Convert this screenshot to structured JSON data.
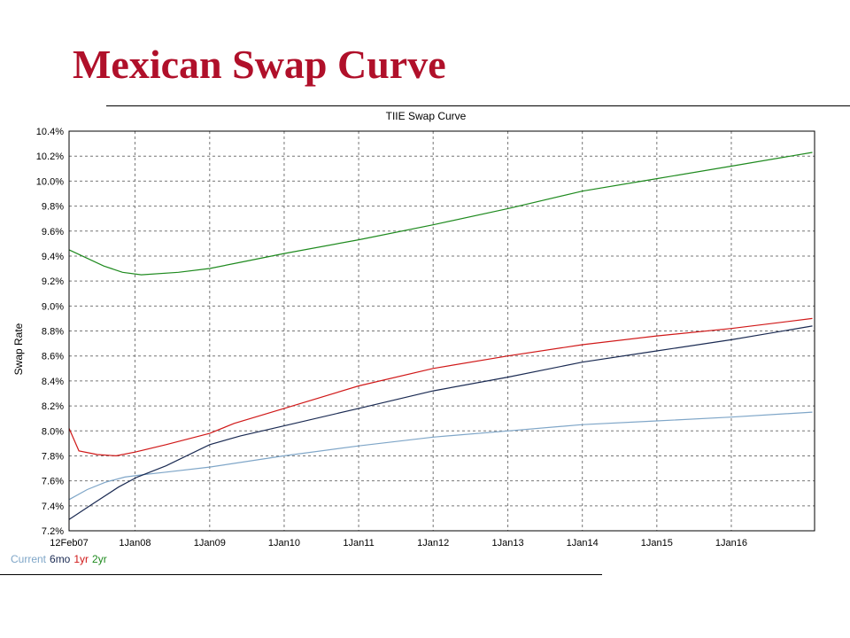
{
  "slide": {
    "title": "Mexican Swap Curve"
  },
  "chart_data": {
    "type": "line",
    "title": "TIIE Swap Curve",
    "xlabel": "",
    "ylabel": "Swap Rate",
    "x_type": "date",
    "xlim": [
      "2007-02-12",
      "2017-02-12"
    ],
    "ylim": [
      7.2,
      10.4
    ],
    "y_ticks": [
      {
        "value": 7.2,
        "label": "7.2%"
      },
      {
        "value": 7.4,
        "label": "7.4%"
      },
      {
        "value": 7.6,
        "label": "7.6%"
      },
      {
        "value": 7.8,
        "label": "7.8%"
      },
      {
        "value": 8.0,
        "label": "8.0%"
      },
      {
        "value": 8.2,
        "label": "8.2%"
      },
      {
        "value": 8.4,
        "label": "8.4%"
      },
      {
        "value": 8.6,
        "label": "8.6%"
      },
      {
        "value": 8.8,
        "label": "8.8%"
      },
      {
        "value": 9.0,
        "label": "9.0%"
      },
      {
        "value": 9.2,
        "label": "9.2%"
      },
      {
        "value": 9.4,
        "label": "9.4%"
      },
      {
        "value": 9.6,
        "label": "9.6%"
      },
      {
        "value": 9.8,
        "label": "9.8%"
      },
      {
        "value": 10.0,
        "label": "10.0%"
      },
      {
        "value": 10.2,
        "label": "10.2%"
      },
      {
        "value": 10.4,
        "label": "10.4%"
      }
    ],
    "x_ticks": [
      {
        "date": "2007-02-12",
        "label": "12Feb07"
      },
      {
        "date": "2008-01-01",
        "label": "1Jan08"
      },
      {
        "date": "2009-01-01",
        "label": "1Jan09"
      },
      {
        "date": "2010-01-01",
        "label": "1Jan10"
      },
      {
        "date": "2011-01-01",
        "label": "1Jan11"
      },
      {
        "date": "2012-01-01",
        "label": "1Jan12"
      },
      {
        "date": "2013-01-01",
        "label": "1Jan13"
      },
      {
        "date": "2014-01-01",
        "label": "1Jan14"
      },
      {
        "date": "2015-01-01",
        "label": "1Jan15"
      },
      {
        "date": "2016-01-01",
        "label": "1Jan16"
      }
    ],
    "grid": true,
    "legend_position": "bottom-left",
    "series": [
      {
        "name": "Current",
        "color": "#7fa6c8",
        "points": [
          {
            "x": "2007-02-12",
            "y": 7.45
          },
          {
            "x": "2007-05-12",
            "y": 7.53
          },
          {
            "x": "2007-08-12",
            "y": 7.59
          },
          {
            "x": "2007-11-12",
            "y": 7.63
          },
          {
            "x": "2008-02-12",
            "y": 7.65
          },
          {
            "x": "2008-06-01",
            "y": 7.67
          },
          {
            "x": "2009-01-01",
            "y": 7.71
          },
          {
            "x": "2010-01-01",
            "y": 7.8
          },
          {
            "x": "2011-01-01",
            "y": 7.88
          },
          {
            "x": "2012-01-01",
            "y": 7.95
          },
          {
            "x": "2013-01-01",
            "y": 8.0
          },
          {
            "x": "2014-01-01",
            "y": 8.05
          },
          {
            "x": "2015-01-01",
            "y": 8.08
          },
          {
            "x": "2016-01-01",
            "y": 8.11
          },
          {
            "x": "2017-02-01",
            "y": 8.15
          }
        ]
      },
      {
        "name": "6mo",
        "color": "#1a2a52",
        "points": [
          {
            "x": "2007-02-12",
            "y": 7.29
          },
          {
            "x": "2007-06-12",
            "y": 7.42
          },
          {
            "x": "2007-10-12",
            "y": 7.55
          },
          {
            "x": "2008-01-12",
            "y": 7.63
          },
          {
            "x": "2008-06-01",
            "y": 7.72
          },
          {
            "x": "2009-01-01",
            "y": 7.89
          },
          {
            "x": "2009-06-01",
            "y": 7.96
          },
          {
            "x": "2010-01-01",
            "y": 8.04
          },
          {
            "x": "2011-01-01",
            "y": 8.18
          },
          {
            "x": "2012-01-01",
            "y": 8.32
          },
          {
            "x": "2013-01-01",
            "y": 8.43
          },
          {
            "x": "2014-01-01",
            "y": 8.55
          },
          {
            "x": "2015-01-01",
            "y": 8.64
          },
          {
            "x": "2016-01-01",
            "y": 8.73
          },
          {
            "x": "2017-02-01",
            "y": 8.84
          }
        ]
      },
      {
        "name": "1yr",
        "color": "#d01818",
        "points": [
          {
            "x": "2007-02-12",
            "y": 8.02
          },
          {
            "x": "2007-04-01",
            "y": 7.84
          },
          {
            "x": "2007-07-01",
            "y": 7.81
          },
          {
            "x": "2007-10-01",
            "y": 7.8
          },
          {
            "x": "2008-01-01",
            "y": 7.83
          },
          {
            "x": "2008-06-01",
            "y": 7.89
          },
          {
            "x": "2009-01-01",
            "y": 7.98
          },
          {
            "x": "2009-05-01",
            "y": 8.06
          },
          {
            "x": "2010-01-01",
            "y": 8.18
          },
          {
            "x": "2011-01-01",
            "y": 8.36
          },
          {
            "x": "2012-01-01",
            "y": 8.5
          },
          {
            "x": "2013-01-01",
            "y": 8.6
          },
          {
            "x": "2014-01-01",
            "y": 8.69
          },
          {
            "x": "2015-01-01",
            "y": 8.76
          },
          {
            "x": "2016-01-01",
            "y": 8.82
          },
          {
            "x": "2017-02-01",
            "y": 8.9
          }
        ]
      },
      {
        "name": "2yr",
        "color": "#1e8a1e",
        "points": [
          {
            "x": "2007-02-12",
            "y": 9.45
          },
          {
            "x": "2007-05-01",
            "y": 9.39
          },
          {
            "x": "2007-08-01",
            "y": 9.32
          },
          {
            "x": "2007-11-01",
            "y": 9.27
          },
          {
            "x": "2008-02-01",
            "y": 9.25
          },
          {
            "x": "2008-08-01",
            "y": 9.27
          },
          {
            "x": "2009-01-01",
            "y": 9.3
          },
          {
            "x": "2009-06-01",
            "y": 9.35
          },
          {
            "x": "2010-01-01",
            "y": 9.42
          },
          {
            "x": "2011-01-01",
            "y": 9.53
          },
          {
            "x": "2012-01-01",
            "y": 9.65
          },
          {
            "x": "2013-01-01",
            "y": 9.78
          },
          {
            "x": "2014-01-01",
            "y": 9.92
          },
          {
            "x": "2015-01-01",
            "y": 10.02
          },
          {
            "x": "2016-01-01",
            "y": 10.12
          },
          {
            "x": "2017-02-01",
            "y": 10.23
          }
        ]
      }
    ]
  }
}
